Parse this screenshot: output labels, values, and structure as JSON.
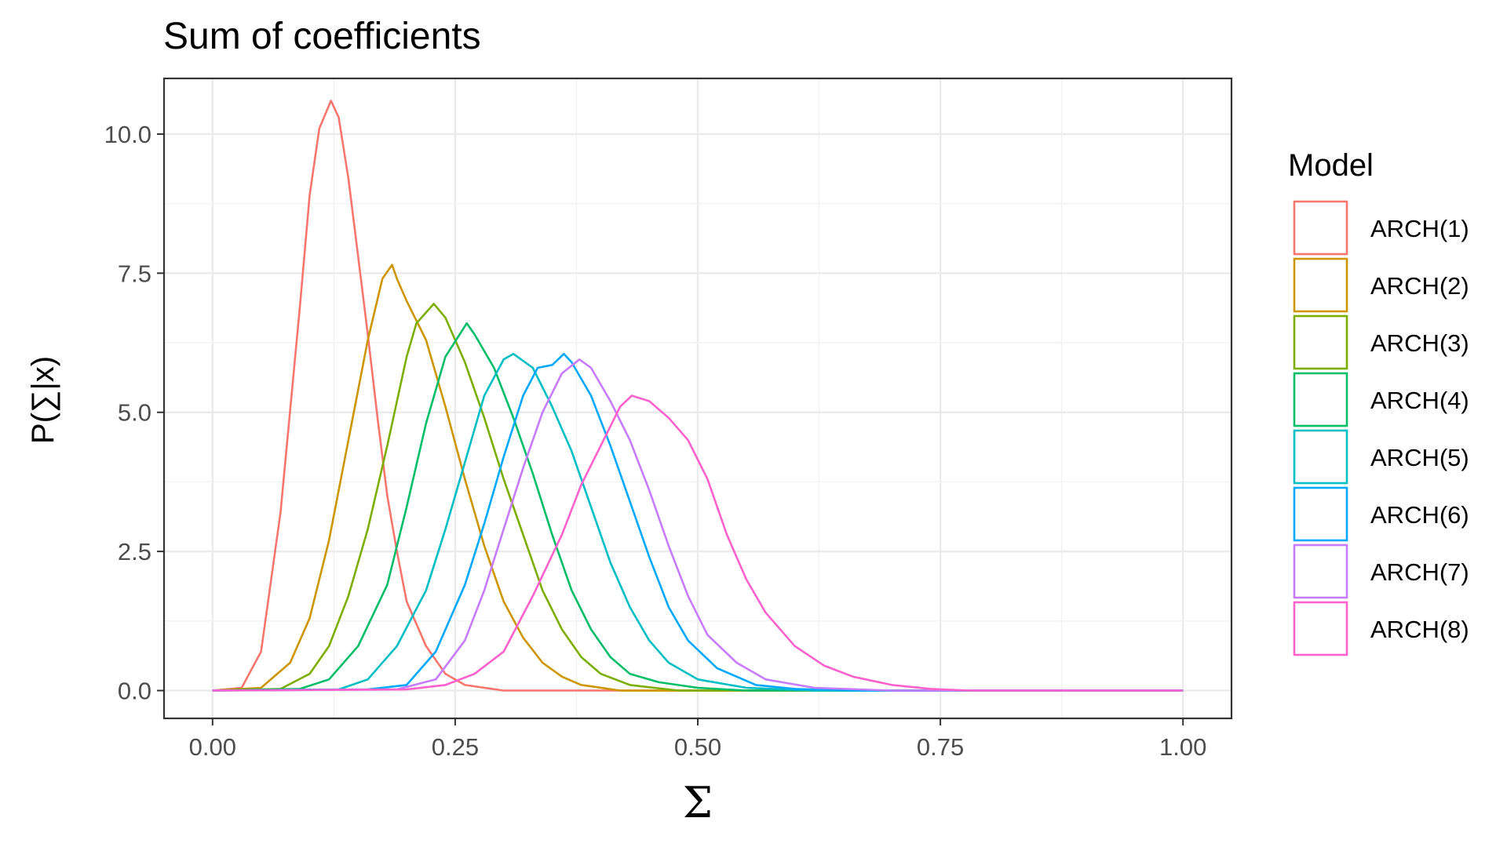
{
  "chart_data": {
    "type": "line",
    "title": "Sum of coefficients",
    "xlabel": "Σ",
    "ylabel": "P(∑|x)",
    "xlim": [
      -0.05,
      1.05
    ],
    "ylim": [
      -0.5,
      11.0
    ],
    "x_ticks": [
      0.0,
      0.25,
      0.5,
      0.75,
      1.0
    ],
    "x_tick_labels": [
      "0.00",
      "0.25",
      "0.50",
      "0.75",
      "1.00"
    ],
    "y_ticks": [
      0.0,
      2.5,
      5.0,
      7.5,
      10.0
    ],
    "y_tick_labels": [
      "0.0",
      "2.5",
      "5.0",
      "7.5",
      "10.0"
    ],
    "grid": true,
    "legend": {
      "title": "Model",
      "position": "right"
    },
    "series": [
      {
        "name": "ARCH(1)",
        "color": "#F8766D",
        "peak_x": 0.122,
        "peak_y": 10.6,
        "x_min": 0.0,
        "x_max": 0.3,
        "points": [
          [
            0.0,
            0.0
          ],
          [
            0.03,
            0.05
          ],
          [
            0.05,
            0.7
          ],
          [
            0.07,
            3.2
          ],
          [
            0.09,
            6.9
          ],
          [
            0.1,
            8.9
          ],
          [
            0.11,
            10.1
          ],
          [
            0.122,
            10.6
          ],
          [
            0.13,
            10.3
          ],
          [
            0.14,
            9.2
          ],
          [
            0.15,
            7.8
          ],
          [
            0.16,
            6.4
          ],
          [
            0.17,
            4.9
          ],
          [
            0.18,
            3.5
          ],
          [
            0.19,
            2.5
          ],
          [
            0.2,
            1.6
          ],
          [
            0.22,
            0.8
          ],
          [
            0.24,
            0.3
          ],
          [
            0.26,
            0.1
          ],
          [
            0.3,
            0.0
          ],
          [
            1.0,
            0.0
          ]
        ]
      },
      {
        "name": "ARCH(2)",
        "color": "#CD9600",
        "peak_x": 0.185,
        "peak_y": 7.65,
        "x_min": 0.04,
        "x_max": 0.42,
        "points": [
          [
            0.0,
            0.0
          ],
          [
            0.05,
            0.05
          ],
          [
            0.08,
            0.5
          ],
          [
            0.1,
            1.3
          ],
          [
            0.12,
            2.7
          ],
          [
            0.14,
            4.5
          ],
          [
            0.16,
            6.3
          ],
          [
            0.175,
            7.4
          ],
          [
            0.185,
            7.65
          ],
          [
            0.19,
            7.4
          ],
          [
            0.2,
            7.0
          ],
          [
            0.22,
            6.3
          ],
          [
            0.24,
            5.1
          ],
          [
            0.26,
            3.8
          ],
          [
            0.28,
            2.6
          ],
          [
            0.3,
            1.6
          ],
          [
            0.32,
            0.95
          ],
          [
            0.34,
            0.5
          ],
          [
            0.36,
            0.25
          ],
          [
            0.38,
            0.1
          ],
          [
            0.42,
            0.0
          ],
          [
            1.0,
            0.0
          ]
        ]
      },
      {
        "name": "ARCH(3)",
        "color": "#7CAE00",
        "peak_x": 0.228,
        "peak_y": 6.95,
        "x_min": 0.06,
        "x_max": 0.48,
        "points": [
          [
            0.0,
            0.0
          ],
          [
            0.07,
            0.03
          ],
          [
            0.1,
            0.3
          ],
          [
            0.12,
            0.8
          ],
          [
            0.14,
            1.7
          ],
          [
            0.16,
            2.9
          ],
          [
            0.18,
            4.4
          ],
          [
            0.2,
            6.0
          ],
          [
            0.21,
            6.6
          ],
          [
            0.228,
            6.95
          ],
          [
            0.24,
            6.7
          ],
          [
            0.26,
            5.9
          ],
          [
            0.28,
            4.9
          ],
          [
            0.3,
            3.8
          ],
          [
            0.32,
            2.8
          ],
          [
            0.34,
            1.8
          ],
          [
            0.36,
            1.1
          ],
          [
            0.38,
            0.6
          ],
          [
            0.4,
            0.3
          ],
          [
            0.43,
            0.1
          ],
          [
            0.48,
            0.0
          ],
          [
            1.0,
            0.0
          ]
        ]
      },
      {
        "name": "ARCH(4)",
        "color": "#00BE67",
        "peak_x": 0.262,
        "peak_y": 6.6,
        "x_min": 0.08,
        "x_max": 0.55,
        "points": [
          [
            0.0,
            0.0
          ],
          [
            0.09,
            0.03
          ],
          [
            0.12,
            0.2
          ],
          [
            0.15,
            0.8
          ],
          [
            0.18,
            1.9
          ],
          [
            0.2,
            3.3
          ],
          [
            0.22,
            4.8
          ],
          [
            0.24,
            6.0
          ],
          [
            0.262,
            6.6
          ],
          [
            0.27,
            6.4
          ],
          [
            0.29,
            5.8
          ],
          [
            0.31,
            4.9
          ],
          [
            0.33,
            3.9
          ],
          [
            0.35,
            2.8
          ],
          [
            0.37,
            1.8
          ],
          [
            0.39,
            1.1
          ],
          [
            0.41,
            0.6
          ],
          [
            0.43,
            0.3
          ],
          [
            0.46,
            0.15
          ],
          [
            0.5,
            0.05
          ],
          [
            0.55,
            0.0
          ],
          [
            1.0,
            0.0
          ]
        ]
      },
      {
        "name": "ARCH(5)",
        "color": "#00BFC4",
        "peak_x": 0.31,
        "peak_y": 6.05,
        "x_min": 0.12,
        "x_max": 0.62,
        "points": [
          [
            0.0,
            0.0
          ],
          [
            0.13,
            0.02
          ],
          [
            0.16,
            0.2
          ],
          [
            0.19,
            0.8
          ],
          [
            0.22,
            1.8
          ],
          [
            0.24,
            2.9
          ],
          [
            0.26,
            4.1
          ],
          [
            0.28,
            5.3
          ],
          [
            0.3,
            5.95
          ],
          [
            0.31,
            6.05
          ],
          [
            0.33,
            5.8
          ],
          [
            0.35,
            5.1
          ],
          [
            0.37,
            4.3
          ],
          [
            0.39,
            3.3
          ],
          [
            0.41,
            2.3
          ],
          [
            0.43,
            1.5
          ],
          [
            0.45,
            0.9
          ],
          [
            0.47,
            0.5
          ],
          [
            0.5,
            0.2
          ],
          [
            0.55,
            0.05
          ],
          [
            0.62,
            0.0
          ],
          [
            1.0,
            0.0
          ]
        ]
      },
      {
        "name": "ARCH(6)",
        "color": "#00A9FF",
        "peak_x": 0.362,
        "peak_y": 6.05,
        "x_min": 0.15,
        "x_max": 0.66,
        "points": [
          [
            0.0,
            0.0
          ],
          [
            0.16,
            0.02
          ],
          [
            0.2,
            0.1
          ],
          [
            0.23,
            0.7
          ],
          [
            0.26,
            1.9
          ],
          [
            0.28,
            3.0
          ],
          [
            0.3,
            4.2
          ],
          [
            0.32,
            5.3
          ],
          [
            0.335,
            5.8
          ],
          [
            0.35,
            5.85
          ],
          [
            0.362,
            6.05
          ],
          [
            0.37,
            5.9
          ],
          [
            0.39,
            5.3
          ],
          [
            0.41,
            4.4
          ],
          [
            0.43,
            3.4
          ],
          [
            0.45,
            2.4
          ],
          [
            0.47,
            1.5
          ],
          [
            0.49,
            0.9
          ],
          [
            0.52,
            0.4
          ],
          [
            0.56,
            0.1
          ],
          [
            0.6,
            0.03
          ],
          [
            0.66,
            0.0
          ],
          [
            1.0,
            0.0
          ]
        ]
      },
      {
        "name": "ARCH(7)",
        "color": "#C77CFF",
        "peak_x": 0.378,
        "peak_y": 5.95,
        "x_min": 0.18,
        "x_max": 0.7,
        "points": [
          [
            0.0,
            0.0
          ],
          [
            0.19,
            0.02
          ],
          [
            0.23,
            0.2
          ],
          [
            0.26,
            0.9
          ],
          [
            0.28,
            1.8
          ],
          [
            0.3,
            2.9
          ],
          [
            0.32,
            4.0
          ],
          [
            0.34,
            5.0
          ],
          [
            0.36,
            5.7
          ],
          [
            0.378,
            5.95
          ],
          [
            0.39,
            5.8
          ],
          [
            0.41,
            5.2
          ],
          [
            0.43,
            4.5
          ],
          [
            0.45,
            3.6
          ],
          [
            0.47,
            2.6
          ],
          [
            0.49,
            1.7
          ],
          [
            0.51,
            1.0
          ],
          [
            0.54,
            0.5
          ],
          [
            0.57,
            0.2
          ],
          [
            0.62,
            0.05
          ],
          [
            0.7,
            0.0
          ],
          [
            1.0,
            0.0
          ]
        ]
      },
      {
        "name": "ARCH(8)",
        "color": "#FF61CC",
        "peak_x": 0.432,
        "peak_y": 5.3,
        "x_min": 0.18,
        "x_max": 0.78,
        "points": [
          [
            0.0,
            0.0
          ],
          [
            0.2,
            0.02
          ],
          [
            0.24,
            0.1
          ],
          [
            0.27,
            0.3
          ],
          [
            0.3,
            0.7
          ],
          [
            0.33,
            1.7
          ],
          [
            0.36,
            2.8
          ],
          [
            0.38,
            3.7
          ],
          [
            0.4,
            4.4
          ],
          [
            0.42,
            5.1
          ],
          [
            0.432,
            5.3
          ],
          [
            0.45,
            5.2
          ],
          [
            0.47,
            4.9
          ],
          [
            0.49,
            4.5
          ],
          [
            0.51,
            3.8
          ],
          [
            0.53,
            2.8
          ],
          [
            0.55,
            2.0
          ],
          [
            0.57,
            1.4
          ],
          [
            0.6,
            0.8
          ],
          [
            0.63,
            0.45
          ],
          [
            0.66,
            0.25
          ],
          [
            0.7,
            0.1
          ],
          [
            0.74,
            0.03
          ],
          [
            0.78,
            0.0
          ],
          [
            1.0,
            0.0
          ]
        ]
      }
    ]
  }
}
